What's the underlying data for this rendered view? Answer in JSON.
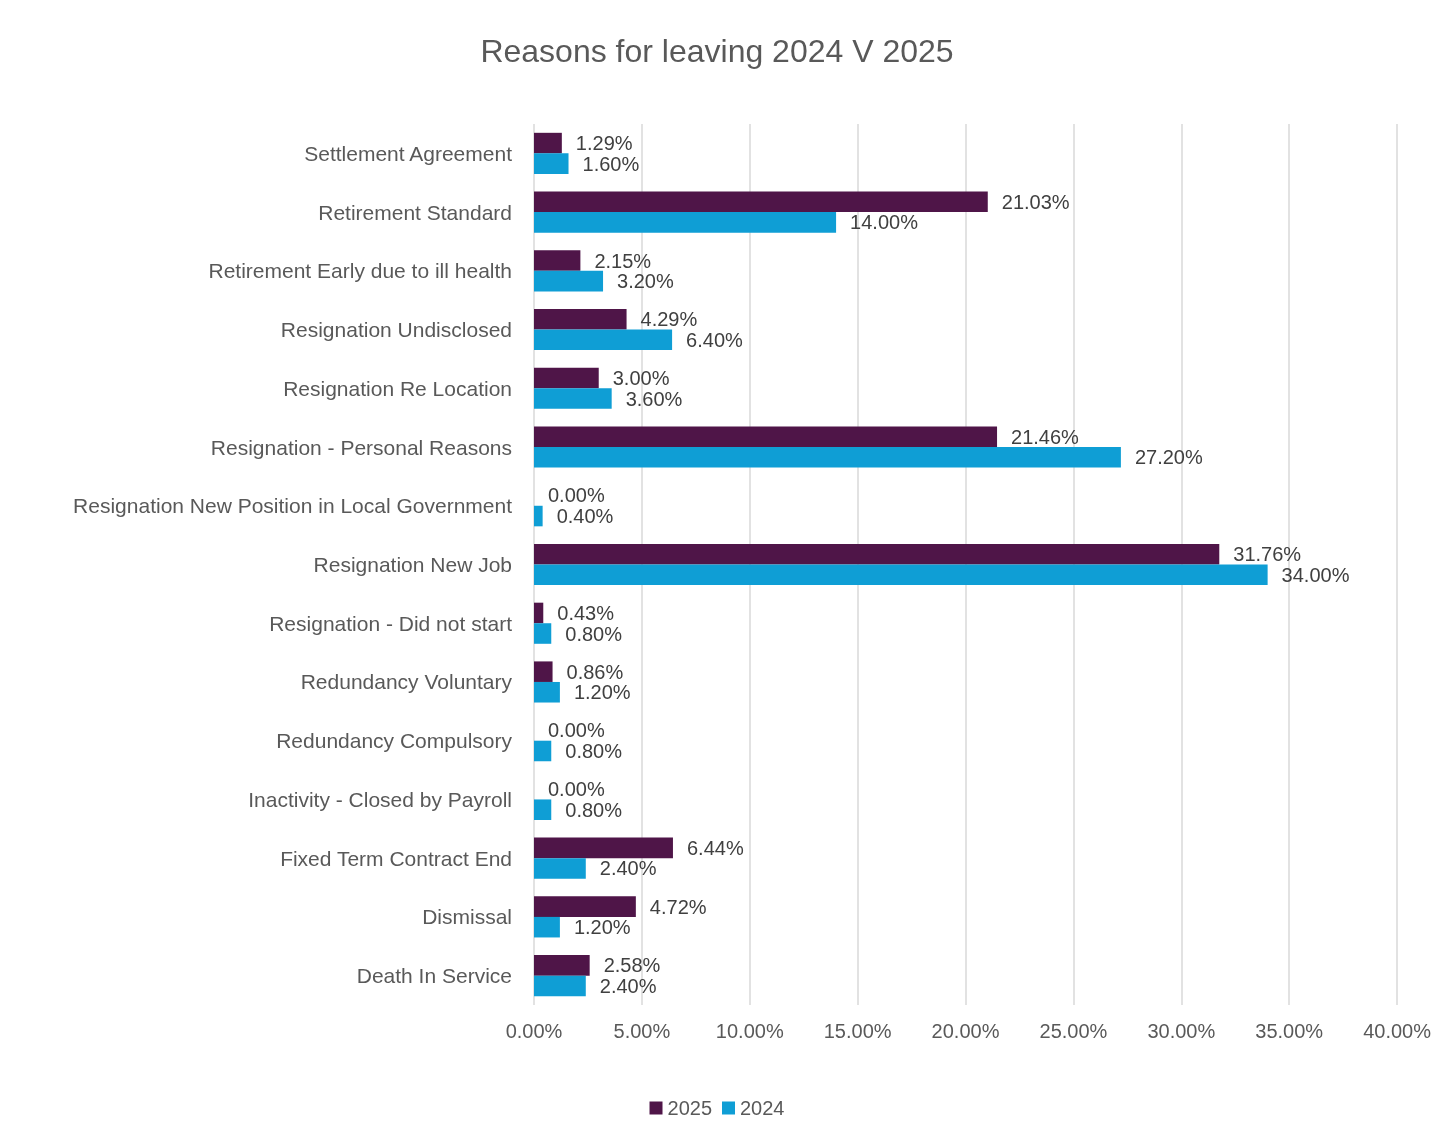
{
  "chart_data": {
    "type": "bar",
    "orientation": "horizontal",
    "title": "Reasons for leaving 2024 V 2025",
    "categories": [
      "Settlement Agreement",
      "Retirement Standard",
      "Retirement Early due to ill health",
      "Resignation Undisclosed",
      "Resignation Re Location",
      "Resignation - Personal Reasons",
      "Resignation New Position in Local Government",
      "Resignation New Job",
      "Resignation - Did not start",
      "Redundancy Voluntary",
      "Redundancy Compulsory",
      "Inactivity - Closed by Payroll",
      "Fixed Term Contract End",
      "Dismissal",
      "Death In Service"
    ],
    "series": [
      {
        "name": "2025",
        "color": "#4f1548",
        "values": [
          1.29,
          21.03,
          2.15,
          4.29,
          3.0,
          21.46,
          0.0,
          31.76,
          0.43,
          0.86,
          0.0,
          0.0,
          6.44,
          4.72,
          2.58
        ],
        "value_labels": [
          "1.29%",
          "21.03%",
          "2.15%",
          "4.29%",
          "3.00%",
          "21.46%",
          "0.00%",
          "31.76%",
          "0.43%",
          "0.86%",
          "0.00%",
          "0.00%",
          "6.44%",
          "4.72%",
          "2.58%"
        ]
      },
      {
        "name": "2024",
        "color": "#0f9ed5",
        "values": [
          1.6,
          14.0,
          3.2,
          6.4,
          3.6,
          27.2,
          0.4,
          34.0,
          0.8,
          1.2,
          0.8,
          0.8,
          2.4,
          1.2,
          2.4
        ],
        "value_labels": [
          "1.60%",
          "14.00%",
          "3.20%",
          "6.40%",
          "3.60%",
          "27.20%",
          "0.40%",
          "34.00%",
          "0.80%",
          "1.20%",
          "0.80%",
          "0.80%",
          "2.40%",
          "1.20%",
          "2.40%"
        ]
      }
    ],
    "xlim": [
      0,
      40
    ],
    "xticks": [
      {
        "value": 0,
        "label": "0.00%"
      },
      {
        "value": 5,
        "label": "5.00%"
      },
      {
        "value": 10,
        "label": "10.00%"
      },
      {
        "value": 15,
        "label": "15.00%"
      },
      {
        "value": 20,
        "label": "20.00%"
      },
      {
        "value": 25,
        "label": "25.00%"
      },
      {
        "value": 30,
        "label": "30.00%"
      },
      {
        "value": 35,
        "label": "35.00%"
      },
      {
        "value": 40,
        "label": "40.00%"
      }
    ],
    "grid": "x",
    "legend": "bottom"
  }
}
